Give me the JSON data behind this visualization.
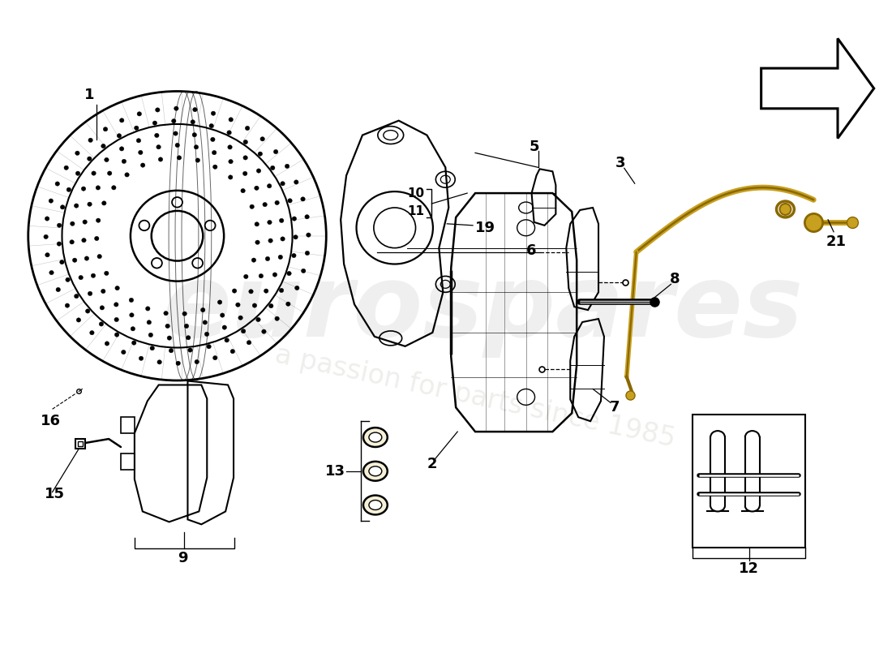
{
  "background_color": "#ffffff",
  "line_color": "#000000",
  "brake_line_color": "#c8a020",
  "watermark1": "eurospares",
  "watermark2": "a passion for parts since 1985"
}
